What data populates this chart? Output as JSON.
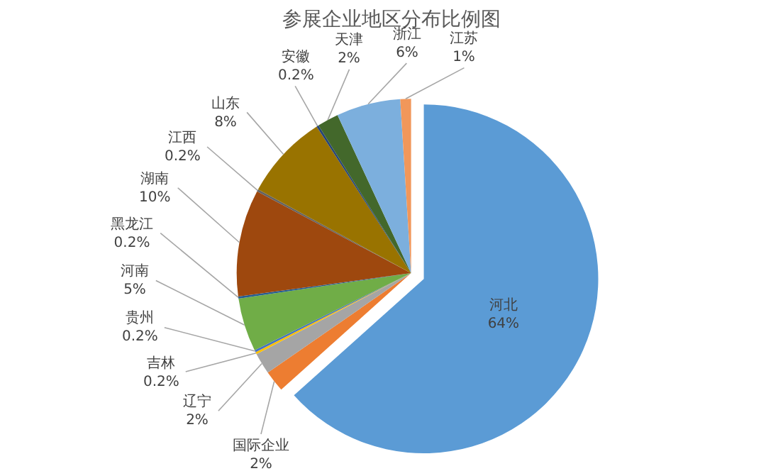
{
  "chart_data": {
    "type": "pie",
    "title": "参展企业地区分布比例图",
    "categories": [
      "河北",
      "国际企业",
      "辽宁",
      "吉林",
      "贵州",
      "河南",
      "黑龙江",
      "湖南",
      "江西",
      "山东",
      "安徽",
      "天津",
      "浙江",
      "江苏"
    ],
    "values": [
      64,
      2,
      2,
      0.2,
      0.2,
      5,
      0.2,
      10,
      0.2,
      8,
      0.2,
      2,
      6,
      1
    ],
    "value_labels": [
      "64%",
      "2%",
      "2%",
      "0.2%",
      "0.2%",
      "5%",
      "0.2%",
      "10%",
      "0.2%",
      "8%",
      "0.2%",
      "2%",
      "6%",
      "1%"
    ],
    "colors": [
      "#5b9bd5",
      "#ed7d31",
      "#a5a5a5",
      "#ffc000",
      "#4472c4",
      "#70ad47",
      "#255e91",
      "#9e480e",
      "#636363",
      "#997300",
      "#264478",
      "#43682b",
      "#7cafdd",
      "#f1975a"
    ],
    "legend": false
  }
}
